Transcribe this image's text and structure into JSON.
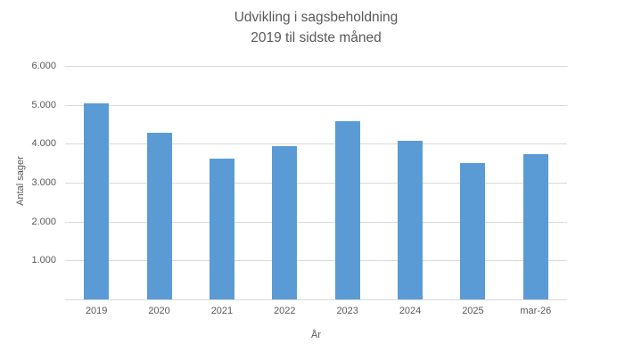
{
  "window": {
    "background": "#ffffff"
  },
  "chart_data": {
    "type": "bar",
    "title": "Udvikling i sagsbeholdning",
    "subtitle": "2019 til sidste måned",
    "xlabel": "År",
    "ylabel": "Antal sager",
    "categories": [
      "2019",
      "2020",
      "2021",
      "2022",
      "2023",
      "2024",
      "2025",
      "mar-26"
    ],
    "values": [
      5030,
      4280,
      3610,
      3930,
      4570,
      4080,
      3510,
      3740
    ],
    "ylim": [
      0,
      6000
    ],
    "yticks": [
      6000,
      5000,
      4000,
      3000,
      2000,
      1000
    ],
    "ytick_labels": [
      "6.000",
      "5.000",
      "4.000",
      "3.000",
      "2.000",
      "1.000"
    ],
    "grid": true,
    "legend": false,
    "bar_color": "#5B9BD5",
    "gridline_color": "#D9D9D9",
    "axis_line_color": "#D9D9D9",
    "text_color": "#595959",
    "title_color": "#595959"
  }
}
